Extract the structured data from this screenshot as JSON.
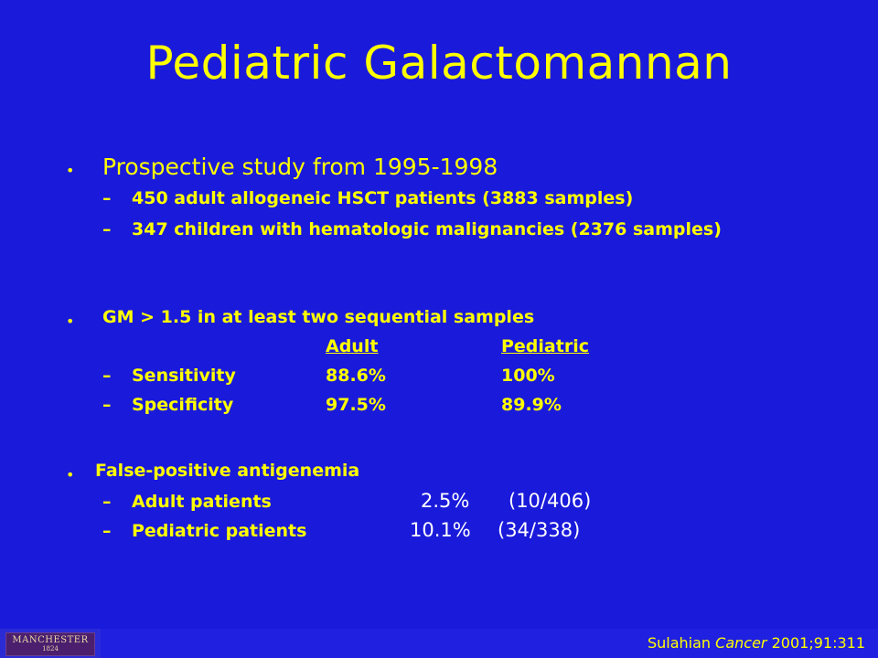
{
  "title": "Pediatric Galactomannan",
  "section1": {
    "bullet": "•",
    "heading": "Prospective study from 1995-1998",
    "items": [
      {
        "dash": "–",
        "text": "450 adult allogeneic HSCT patients (3883 samples)"
      },
      {
        "dash": "–",
        "text": "347 children with hematologic malignancies (2376 samples)"
      }
    ]
  },
  "section2": {
    "bullet": "•",
    "heading": "GM > 1.5 in at least two sequential samples",
    "col_adult": "Adult",
    "col_pediatric": "Pediatric",
    "rows": [
      {
        "dash": "–",
        "label": "Sensitivity",
        "adult": "88.6%",
        "pediatric": "100%"
      },
      {
        "dash": "–",
        "label": "Specificity",
        "adult": "97.5%",
        "pediatric": "89.9%"
      }
    ]
  },
  "section3": {
    "bullet": "•",
    "heading": "False-positive antigenemia",
    "rows": [
      {
        "dash": "–",
        "label": "Adult patients",
        "pct": "2.5%",
        "ratio": "(10/406)"
      },
      {
        "dash": "–",
        "label": "Pediatric patients",
        "pct": "10.1%",
        "ratio": "(34/338)"
      }
    ]
  },
  "footer": {
    "logo_name": "MANCHESTER",
    "logo_year": "1824",
    "citation_author": "Sulahian",
    "citation_journal": "Cancer",
    "citation_ref": "2001;91:311"
  }
}
